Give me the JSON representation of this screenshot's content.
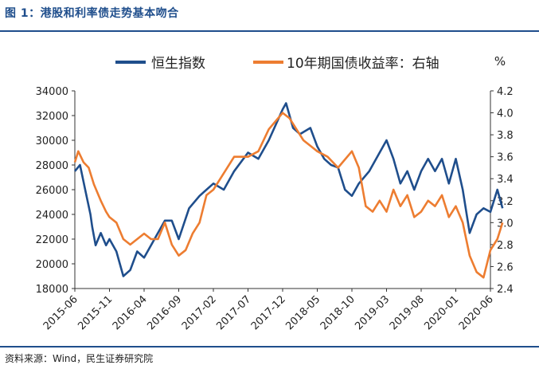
{
  "figure": {
    "title": "图 1：港股和利率债走势基本吻合",
    "source": "资料来源：Wind，民生证券研究院"
  },
  "chart_data": {
    "type": "line",
    "unit_label": "%",
    "x_ticks": [
      "2015-06",
      "2015-11",
      "2016-04",
      "2016-09",
      "2017-02",
      "2017-07",
      "2017-12",
      "2018-05",
      "2018-10",
      "2019-03",
      "2019-08",
      "2020-01",
      "2020-06"
    ],
    "y_left": {
      "min": 18000,
      "max": 34000,
      "ticks": [
        18000,
        20000,
        22000,
        24000,
        26000,
        28000,
        30000,
        32000,
        34000
      ]
    },
    "y_right": {
      "min": 2.4,
      "max": 4.2,
      "ticks": [
        2.4,
        2.6,
        2.8,
        3.0,
        3.2,
        3.4,
        3.6,
        3.8,
        4.0,
        4.2
      ]
    },
    "series": [
      {
        "name": "恒生指数",
        "axis": "left",
        "color": "#1f4e8c",
        "x": [
          0,
          0.15,
          0.3,
          0.45,
          0.5,
          0.6,
          0.75,
          0.9,
          1.0,
          1.2,
          1.4,
          1.6,
          1.8,
          2.0,
          2.2,
          2.4,
          2.6,
          2.8,
          3.0,
          3.3,
          3.6,
          4.0,
          4.3,
          4.6,
          5.0,
          5.3,
          5.6,
          6.0,
          6.1,
          6.3,
          6.5,
          6.8,
          7.0,
          7.2,
          7.4,
          7.6,
          7.8,
          8.0,
          8.2,
          8.5,
          8.8,
          9.0,
          9.2,
          9.4,
          9.6,
          9.8,
          10.0,
          10.2,
          10.4,
          10.6,
          10.8,
          11.0,
          11.2,
          11.4,
          11.6,
          11.8,
          12.0,
          12.2,
          12.35
        ],
        "y": [
          27500,
          28000,
          26000,
          24000,
          23000,
          21500,
          22500,
          21500,
          22000,
          21000,
          19000,
          19500,
          21000,
          20500,
          21500,
          22500,
          23500,
          23500,
          22000,
          24500,
          25500,
          26500,
          26000,
          27500,
          29000,
          28500,
          30000,
          32500,
          33000,
          31000,
          30500,
          31000,
          29500,
          28500,
          28000,
          27800,
          26000,
          25500,
          26500,
          27500,
          29000,
          30000,
          28500,
          26500,
          27500,
          26000,
          27500,
          28500,
          27500,
          28500,
          26500,
          28500,
          26000,
          22500,
          24000,
          24500,
          24200,
          26000,
          24500
        ]
      },
      {
        "name": "10年期国债收益率：右轴",
        "axis": "right",
        "color": "#ed7d31",
        "x": [
          0,
          0.1,
          0.25,
          0.4,
          0.55,
          0.75,
          0.9,
          1.0,
          1.2,
          1.4,
          1.6,
          1.8,
          2.0,
          2.2,
          2.4,
          2.6,
          2.8,
          3.0,
          3.2,
          3.4,
          3.6,
          3.8,
          4.0,
          4.3,
          4.6,
          5.0,
          5.3,
          5.6,
          6.0,
          6.2,
          6.4,
          6.6,
          6.8,
          7.0,
          7.3,
          7.6,
          8.0,
          8.2,
          8.4,
          8.6,
          8.8,
          9.0,
          9.2,
          9.4,
          9.6,
          9.8,
          10.0,
          10.2,
          10.4,
          10.6,
          10.8,
          11.0,
          11.2,
          11.4,
          11.6,
          11.8,
          12.0,
          12.2,
          12.35
        ],
        "y": [
          3.55,
          3.65,
          3.55,
          3.5,
          3.35,
          3.2,
          3.1,
          3.05,
          3.0,
          2.85,
          2.8,
          2.85,
          2.9,
          2.85,
          2.85,
          3.0,
          2.8,
          2.7,
          2.75,
          2.9,
          3.0,
          3.25,
          3.3,
          3.45,
          3.6,
          3.6,
          3.65,
          3.85,
          4.0,
          3.95,
          3.85,
          3.75,
          3.7,
          3.65,
          3.6,
          3.5,
          3.65,
          3.5,
          3.15,
          3.1,
          3.2,
          3.1,
          3.3,
          3.15,
          3.25,
          3.05,
          3.1,
          3.2,
          3.15,
          3.25,
          3.05,
          3.15,
          3.0,
          2.7,
          2.55,
          2.5,
          2.75,
          2.85,
          3.0
        ]
      }
    ]
  }
}
